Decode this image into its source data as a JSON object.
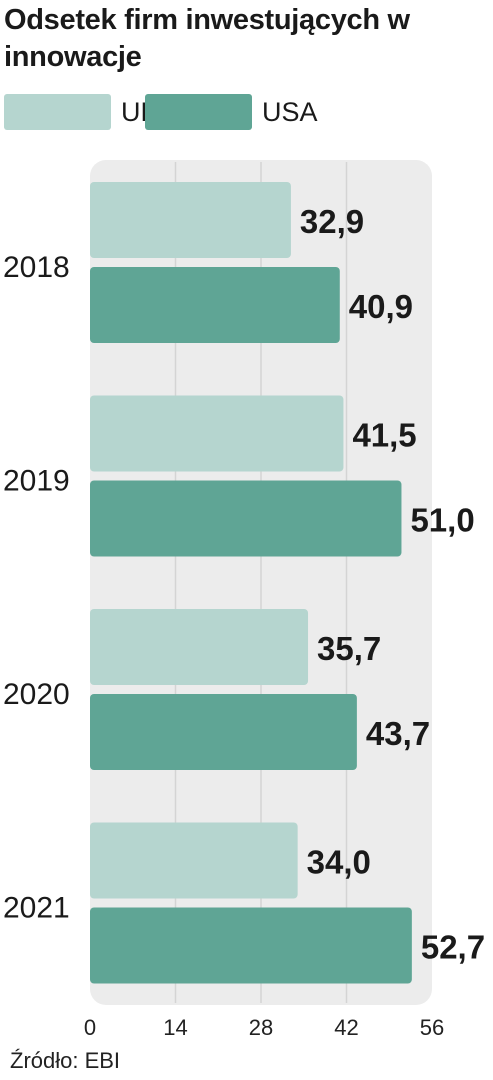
{
  "chart_data": {
    "type": "bar",
    "orientation": "horizontal",
    "title": "Odsetek firm inwestujących w innowacje",
    "categories": [
      "2018",
      "2019",
      "2020",
      "2021"
    ],
    "series": [
      {
        "name": "UE",
        "color": "#b5d5cf",
        "values": [
          32.9,
          41.5,
          35.7,
          34.0
        ],
        "labels": [
          "32,9",
          "41,5",
          "35,7",
          "34,0"
        ]
      },
      {
        "name": "USA",
        "color": "#5fa595",
        "values": [
          40.9,
          51.0,
          43.7,
          52.7
        ],
        "labels": [
          "40,9",
          "51,0",
          "43,7",
          "52,7"
        ]
      }
    ],
    "xlim": [
      0,
      56
    ],
    "xticks": [
      0,
      14,
      28,
      42,
      56
    ],
    "xtick_labels": [
      "0",
      "14",
      "28",
      "42",
      "56"
    ],
    "grid": true,
    "legend_position": "top-left",
    "source": "Źródło: EBI"
  },
  "colors": {
    "plot_background": "#ececec",
    "gridline": "#d4d4d4",
    "text": "#1a1a1a"
  }
}
